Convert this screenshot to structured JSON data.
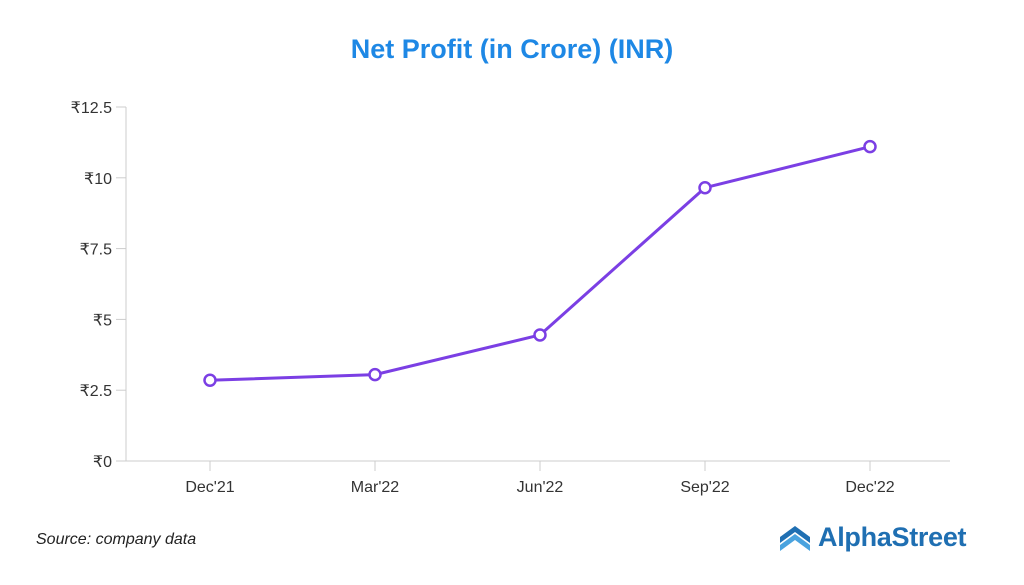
{
  "chart_data": {
    "type": "line",
    "title": "Net Profit (in Crore) (INR)",
    "xlabel": "",
    "ylabel": "",
    "categories": [
      "Dec'21",
      "Mar'22",
      "Jun'22",
      "Sep'22",
      "Dec'22"
    ],
    "series": [
      {
        "values": [
          2.85,
          3.05,
          4.45,
          9.65,
          11.1
        ],
        "color": "#7b3fe4"
      }
    ],
    "ylim": [
      0,
      12.5
    ],
    "yticks": [
      0,
      2.5,
      5,
      7.5,
      10,
      12.5
    ],
    "ytick_labels": [
      "₹0",
      "₹2.5",
      "₹5",
      "₹7.5",
      "₹10",
      "₹12.5"
    ],
    "grid": false,
    "marker": "hollow-circle"
  },
  "source": "Source: company data",
  "brand": {
    "name": "AlphaStreet",
    "icon": "alphastreet-logo-icon",
    "color": "#1f6fb2"
  },
  "colors": {
    "title": "#1e88e5",
    "axis": "#cccccc"
  }
}
